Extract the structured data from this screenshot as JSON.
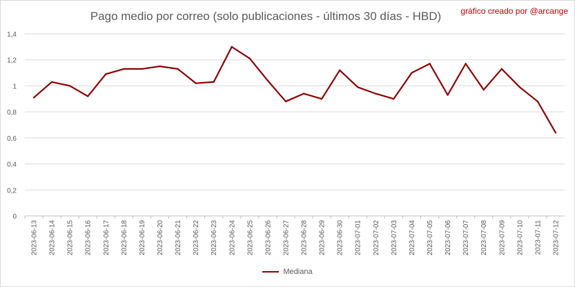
{
  "chart_data": {
    "type": "line",
    "title": "Pago medio por correo (solo publicaciones - últimos 30 días - HBD)",
    "annotation": "gráfico creado por @arcange",
    "xlabel": "",
    "ylabel": "",
    "ylim": [
      0,
      1.4
    ],
    "yticks": [
      "0",
      "0,2",
      "0,4",
      "0,6",
      "0,8",
      "1",
      "1,2",
      "1,4"
    ],
    "grid": true,
    "legend_position": "bottom",
    "categories": [
      "2023-06-13",
      "2023-06-14",
      "2023-06-15",
      "2023-06-16",
      "2023-06-17",
      "2023-06-18",
      "2023-06-19",
      "2023-06-20",
      "2023-06-21",
      "2023-06-22",
      "2023-06-23",
      "2023-06-24",
      "2023-06-25",
      "2023-06-26",
      "2023-06-27",
      "2023-06-28",
      "2023-06-29",
      "2023-06-30",
      "2023-07-01",
      "2023-07-02",
      "2023-07-03",
      "2023-07-04",
      "2023-07-05",
      "2023-07-06",
      "2023-07-07",
      "2023-07-08",
      "2023-07-09",
      "2023-07-10",
      "2023-07-11",
      "2023-07-12"
    ],
    "series": [
      {
        "name": "Mediana",
        "color": "#8b0000",
        "values": [
          0.91,
          1.03,
          1.0,
          0.92,
          1.09,
          1.13,
          1.13,
          1.15,
          1.13,
          1.02,
          1.03,
          1.3,
          1.21,
          1.04,
          0.88,
          0.94,
          0.9,
          1.12,
          0.99,
          0.94,
          0.9,
          1.1,
          1.17,
          0.93,
          1.17,
          0.97,
          1.13,
          0.99,
          0.88,
          0.64
        ]
      }
    ]
  }
}
